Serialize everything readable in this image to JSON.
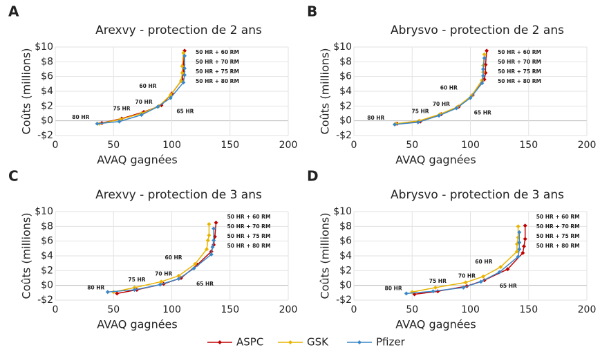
{
  "chart_data": [
    {
      "type": "line",
      "panel": "A",
      "title": "Arexvy - protection de 2 ans",
      "xlabel": "AVAQ gagnées",
      "ylabel": "Coûts (millions)",
      "xlim": [
        0,
        200
      ],
      "xticks": [
        0,
        50,
        100,
        150,
        200
      ],
      "ylim": [
        -2,
        10
      ],
      "yticks": [
        {
          "value": -2,
          "label": "-$2"
        },
        {
          "value": 0,
          "label": "$0"
        },
        {
          "value": 2,
          "label": "$2"
        },
        {
          "value": 4,
          "label": "$4"
        },
        {
          "value": 6,
          "label": "$6"
        },
        {
          "value": 8,
          "label": "$8"
        },
        {
          "value": 10,
          "label": "$10"
        }
      ],
      "grid": true,
      "annotations": [
        "80 HR",
        "75 HR",
        "70 HR",
        "65 HR",
        "60 HR",
        "50 HR + 80 RM",
        "50 HR + 75 RM",
        "50 HR + 70 RM",
        "50 HR + 60 RM"
      ],
      "series": [
        {
          "name": "ASPC",
          "color": "#c00000",
          "x": [
            40,
            57,
            76,
            91,
            100,
            109,
            110,
            110,
            111
          ],
          "values": [
            -0.3,
            0.3,
            1.2,
            2.1,
            3.7,
            5.6,
            6.7,
            7.6,
            9.5
          ]
        },
        {
          "name": "GSK",
          "color": "#e8b400",
          "x": [
            38,
            56,
            74,
            89,
            99,
            108,
            109,
            109,
            110
          ],
          "values": [
            -0.4,
            0.2,
            1.0,
            2.0,
            3.5,
            5.4,
            6.5,
            7.4,
            9.2
          ]
        },
        {
          "name": "Pfizer",
          "color": "#3a87c8",
          "x": [
            36,
            55,
            74,
            88,
            99,
            110,
            111,
            111,
            111
          ],
          "values": [
            -0.4,
            -0.1,
            0.8,
            1.9,
            3.1,
            5.2,
            6.2,
            7.1,
            8.8
          ]
        }
      ]
    },
    {
      "type": "line",
      "panel": "B",
      "title": "Abrysvo - protection de 2 ans",
      "xlabel": "AVAQ gagnées",
      "ylabel": "Coûts (millions)",
      "xlim": [
        0,
        200
      ],
      "xticks": [
        0,
        50,
        100,
        150,
        200
      ],
      "ylim": [
        -2,
        10
      ],
      "yticks": [
        {
          "value": -2,
          "label": "-$2"
        },
        {
          "value": 0,
          "label": "$0"
        },
        {
          "value": 2,
          "label": "$2"
        },
        {
          "value": 4,
          "label": "$4"
        },
        {
          "value": 6,
          "label": "$6"
        },
        {
          "value": 8,
          "label": "$8"
        },
        {
          "value": 10,
          "label": "$10"
        }
      ],
      "grid": true,
      "annotations": [
        "80 HR",
        "75 HR",
        "70 HR",
        "65 HR",
        "60 HR",
        "50 HR + 80 RM",
        "50 HR + 75 RM",
        "50 HR + 70 RM",
        "50 HR + 60 RM"
      ],
      "series": [
        {
          "name": "ASPC",
          "color": "#c00000",
          "x": [
            37,
            57,
            75,
            90,
            102,
            112,
            113,
            113,
            114
          ],
          "values": [
            -0.4,
            -0.1,
            0.9,
            1.9,
            3.5,
            5.6,
            6.5,
            7.6,
            9.5
          ]
        },
        {
          "name": "GSK",
          "color": "#e8b400",
          "x": [
            36,
            56,
            74,
            89,
            101,
            110,
            111,
            111,
            112
          ],
          "values": [
            -0.4,
            0,
            0.9,
            1.9,
            3.4,
            5.5,
            6.6,
            7.5,
            9.0
          ]
        },
        {
          "name": "Pfizer",
          "color": "#3a87c8",
          "x": [
            35,
            55,
            73,
            88,
            100,
            110,
            111,
            111,
            112
          ],
          "values": [
            -0.5,
            -0.2,
            0.7,
            1.7,
            3.1,
            5.1,
            6.1,
            7.0,
            8.5
          ]
        }
      ]
    },
    {
      "type": "line",
      "panel": "C",
      "title": "Arexvy - protection de 3 ans",
      "xlabel": "AVAQ gagnées",
      "ylabel": "Coûts (millions)",
      "xlim": [
        0,
        200
      ],
      "xticks": [
        0,
        50,
        100,
        150,
        200
      ],
      "ylim": [
        -2,
        10
      ],
      "yticks": [
        {
          "value": -2,
          "label": "-$2"
        },
        {
          "value": 0,
          "label": "$0"
        },
        {
          "value": 2,
          "label": "$2"
        },
        {
          "value": 4,
          "label": "$4"
        },
        {
          "value": 6,
          "label": "$6"
        },
        {
          "value": 8,
          "label": "$8"
        },
        {
          "value": 10,
          "label": "$10"
        }
      ],
      "grid": true,
      "annotations": [
        "80 HR",
        "75 HR",
        "70 HR",
        "65 HR",
        "60 HR",
        "50 HR + 80 RM",
        "50 HR + 75 RM",
        "50 HR + 70 RM",
        "50 HR + 60 RM"
      ],
      "series": [
        {
          "name": "ASPC",
          "color": "#c00000",
          "x": [
            53,
            70,
            93,
            108,
            122,
            134,
            136,
            137,
            138
          ],
          "values": [
            -1.1,
            -0.6,
            0.2,
            1.0,
            2.8,
            4.6,
            5.5,
            6.6,
            8.5
          ]
        },
        {
          "name": "GSK",
          "color": "#e8b400",
          "x": [
            50,
            68,
            91,
            106,
            120,
            130,
            131,
            132,
            132
          ],
          "values": [
            -0.9,
            -0.3,
            0.5,
            1.3,
            2.9,
            4.9,
            6.1,
            6.8,
            8.3
          ]
        },
        {
          "name": "Pfizer",
          "color": "#3a87c8",
          "x": [
            45,
            68,
            90,
            106,
            119,
            134,
            135,
            136,
            136
          ],
          "values": [
            -0.9,
            -0.6,
            0.1,
            0.9,
            2.3,
            4.2,
            5.2,
            6.1,
            7.7
          ]
        }
      ]
    },
    {
      "type": "line",
      "panel": "D",
      "title": "Abrysvo - protection de 3 ans",
      "xlabel": "AVAQ gagnées",
      "ylabel": "Coûts (millions)",
      "xlim": [
        0,
        200
      ],
      "xticks": [
        0,
        50,
        100,
        150,
        200
      ],
      "ylim": [
        -2,
        10
      ],
      "yticks": [
        {
          "value": -2,
          "label": "-$2"
        },
        {
          "value": 0,
          "label": "$0"
        },
        {
          "value": 2,
          "label": "$2"
        },
        {
          "value": 4,
          "label": "$4"
        },
        {
          "value": 6,
          "label": "$6"
        },
        {
          "value": 8,
          "label": "$8"
        },
        {
          "value": 10,
          "label": "$10"
        }
      ],
      "grid": true,
      "annotations": [
        "80 HR",
        "75 HR",
        "70 HR",
        "65 HR",
        "60 HR",
        "50 HR + 80 RM",
        "50 HR + 75 RM",
        "50 HR + 70 RM",
        "50 HR + 60 RM"
      ],
      "series": [
        {
          "name": "ASPC",
          "color": "#c00000",
          "x": [
            52,
            72,
            97,
            112,
            132,
            145,
            146,
            147,
            147
          ],
          "values": [
            -1.2,
            -0.8,
            -0.1,
            0.7,
            2.2,
            4.4,
            5.3,
            6.3,
            8.1
          ]
        },
        {
          "name": "GSK",
          "color": "#e8b400",
          "x": [
            50,
            70,
            96,
            111,
            126,
            140,
            140,
            141,
            141
          ],
          "values": [
            -0.9,
            -0.3,
            0.4,
            1.2,
            2.5,
            4.6,
            5.6,
            6.5,
            8.0
          ]
        },
        {
          "name": "Pfizer",
          "color": "#3a87c8",
          "x": [
            45,
            68,
            94,
            109,
            125,
            141,
            142,
            142,
            142
          ],
          "values": [
            -1.1,
            -0.8,
            -0.3,
            0.5,
            1.8,
            3.9,
            4.9,
            5.8,
            7.2
          ]
        }
      ]
    }
  ]
}
